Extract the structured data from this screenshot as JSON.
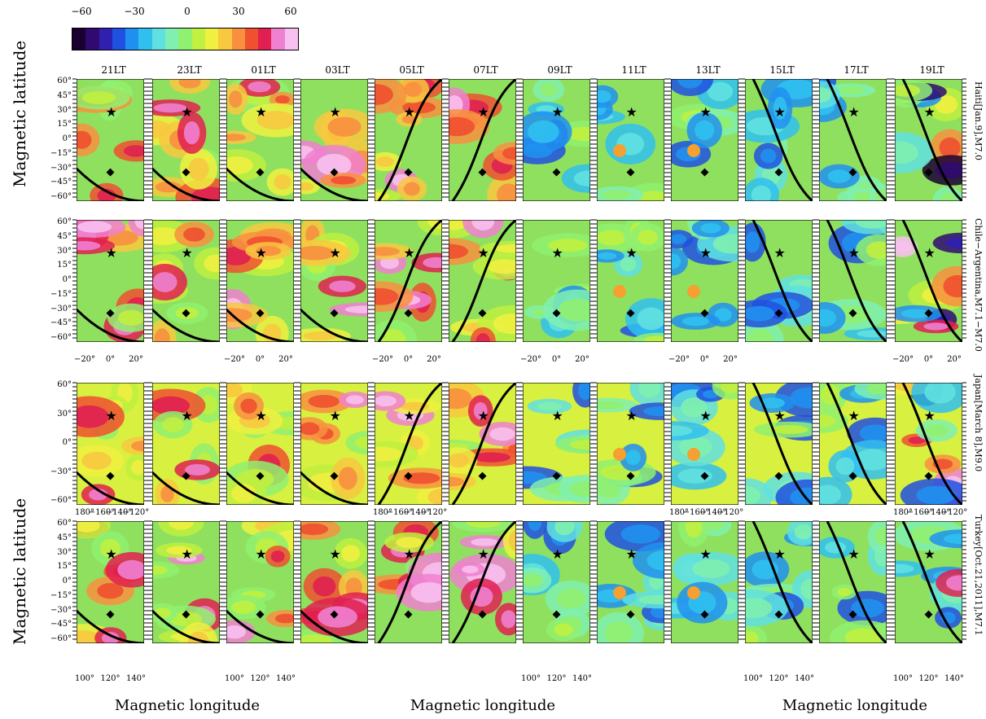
{
  "colorbar": {
    "ticks": [
      "−60",
      "−30",
      "0",
      "30",
      "60"
    ],
    "colors": [
      "#1a0030",
      "#300a70",
      "#3020b0",
      "#2050e0",
      "#2090f0",
      "#30c0f0",
      "#60e0e0",
      "#80f0b0",
      "#90f070",
      "#c0f040",
      "#f0f040",
      "#f8c840",
      "#f89040",
      "#f05030",
      "#e02050",
      "#f080d0",
      "#f8c0f0"
    ]
  },
  "local_times": [
    "21LT",
    "23LT",
    "01LT",
    "03LT",
    "05LT",
    "07LT",
    "09LT",
    "11LT",
    "13LT",
    "15LT",
    "17LT",
    "19LT"
  ],
  "rows": [
    {
      "label": "Haiti[Jan.9],M7.0",
      "lat_ticks": [
        "60°",
        "45°",
        "30°",
        "15°",
        "0°",
        "−15°",
        "−30°",
        "−45°",
        "−60°"
      ]
    },
    {
      "label": "Chile−Argentina,M7.1−M7.0",
      "lat_ticks": [
        "60°",
        "45°",
        "30°",
        "15°",
        "0°",
        "−15°",
        "−30°",
        "−45°",
        "−60°"
      ]
    },
    {
      "label": "Japan[March 8],M9.0",
      "lat_ticks": [
        "60°",
        "30°",
        "0°",
        "−30°",
        "−60°"
      ]
    },
    {
      "label": "Turkey[Oct.21,2011],M7.1",
      "lat_ticks": [
        "60°",
        "45°",
        "30°",
        "15°",
        "0°",
        "−15°",
        "−30°",
        "−45°",
        "−60°"
      ]
    }
  ],
  "lon_ticks_row2": [
    "−20°",
    "0°",
    "20°"
  ],
  "lon_ticks_row3": [
    "180°",
    "−160°",
    "−140°",
    "−120°"
  ],
  "lon_ticks_row4": [
    "100°",
    "120°",
    "140°"
  ],
  "axis": {
    "y_label": "Magnetic latitude",
    "x_label": "Magnetic longitude"
  }
}
